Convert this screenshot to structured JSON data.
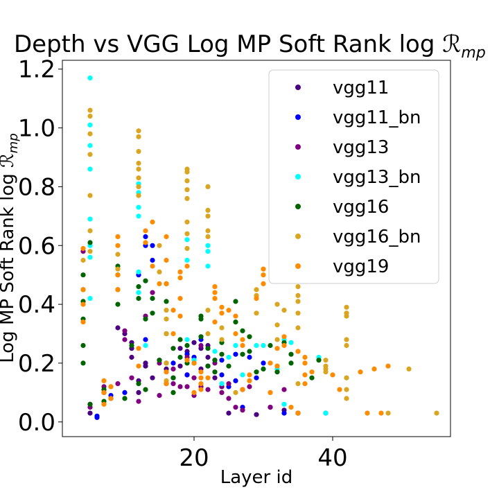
{
  "chart_data": {
    "type": "scatter",
    "title": "Depth vs VGG Log MP Soft Rank log ℛmp",
    "title_text": "Depth vs VGG Log MP Soft Rank log ",
    "title_math": "ℛ",
    "title_sub": "mp",
    "xlabel": "Layer id",
    "ylabel": "Log MP Soft Rank log ℛmp",
    "ylabel_text": "Log MP Soft Rank log ",
    "ylabel_math": "ℛ",
    "ylabel_sub": "mp",
    "xlim": [
      1,
      57
    ],
    "ylim": [
      -0.05,
      1.23
    ],
    "xticks": [
      20,
      40
    ],
    "xtick_labels": [
      "20",
      "40"
    ],
    "yticks": [
      0.0,
      0.2,
      0.4,
      0.6,
      0.8,
      1.0,
      1.2
    ],
    "ytick_labels": [
      "0.0",
      "0.2",
      "0.4",
      "0.6",
      "0.8",
      "1.0",
      "1.2"
    ],
    "grid": false,
    "legend_position": "top-right",
    "series": [
      {
        "name": "vgg11",
        "color": "#4b0082",
        "x": [
          5,
          5,
          7,
          8,
          9,
          10,
          11,
          11,
          11,
          12,
          12,
          13,
          13,
          14,
          15,
          16,
          16,
          17,
          18,
          18,
          19,
          19,
          20,
          20,
          21,
          21,
          22,
          22,
          23,
          24,
          25,
          27,
          29,
          31,
          33,
          35
        ],
        "y": [
          0.06,
          0.03,
          0.1,
          0.08,
          0.32,
          0.3,
          0.27,
          0.25,
          0.22,
          0.14,
          0.1,
          0.19,
          0.2,
          0.15,
          0.21,
          0.13,
          0.18,
          0.15,
          0.19,
          0.25,
          0.16,
          0.24,
          0.27,
          0.22,
          0.25,
          0.18,
          0.22,
          0.26,
          0.15,
          0.12,
          0.03,
          0.11,
          0.025,
          0.05,
          0.04,
          0.03
        ]
      },
      {
        "name": "vgg11_bn",
        "color": "#0000ff",
        "x": [
          6,
          6,
          8,
          10,
          12,
          13,
          13,
          13,
          14,
          14,
          17,
          19,
          19,
          20,
          21,
          22,
          23,
          24,
          24,
          25,
          26,
          26,
          27,
          28,
          29,
          30,
          33,
          39
        ],
        "y": [
          0.02,
          0.015,
          0.09,
          0.1,
          0.5,
          0.63,
          0.6,
          0.28,
          0.6,
          0.55,
          0.2,
          0.16,
          0.23,
          0.22,
          0.28,
          0.19,
          0.21,
          0.16,
          0.21,
          0.12,
          0.14,
          0.23,
          0.05,
          0.22,
          0.15,
          0.2,
          0.03,
          0.03
        ]
      },
      {
        "name": "vgg13",
        "color": "#800080",
        "x": [
          4,
          5,
          7,
          9,
          10,
          10,
          11,
          12,
          13,
          14,
          15,
          15,
          16,
          17,
          17,
          18,
          19,
          19,
          20,
          20,
          21,
          21,
          22,
          23,
          24,
          24,
          25,
          25,
          26,
          27,
          28,
          31,
          33
        ],
        "y": [
          0.58,
          0.05,
          0.12,
          0.13,
          0.28,
          0.31,
          0.15,
          0.07,
          0.36,
          0.44,
          0.2,
          0.09,
          0.2,
          0.13,
          0.18,
          0.12,
          0.12,
          0.22,
          0.15,
          0.09,
          0.26,
          0.12,
          0.11,
          0.2,
          0.1,
          0.12,
          0.08,
          0.13,
          0.05,
          0.04,
          0.12,
          0.05,
          0.11
        ]
      },
      {
        "name": "vgg13_bn",
        "color": "#00ffff",
        "x": [
          4,
          5,
          5,
          5,
          5,
          5,
          5,
          5,
          5,
          12,
          12,
          12,
          12,
          12,
          12,
          13,
          16,
          19,
          19,
          19,
          20,
          22,
          22,
          22,
          23,
          24,
          25,
          26,
          27,
          29,
          30,
          32,
          33,
          33,
          34,
          38,
          39,
          42,
          45
        ],
        "y": [
          0.45,
          1.17,
          1.01,
          0.94,
          0.86,
          0.69,
          0.6,
          0.56,
          0.42,
          0.81,
          0.78,
          0.73,
          0.7,
          0.51,
          0.44,
          0.26,
          0.2,
          0.62,
          0.55,
          0.28,
          0.21,
          0.6,
          0.58,
          0.53,
          0.24,
          0.13,
          0.22,
          0.26,
          0.16,
          0.26,
          0.26,
          0.18,
          0.28,
          0.06,
          0.27,
          0.22,
          0.03,
          0.15,
          0.03
        ]
      },
      {
        "name": "vgg16",
        "color": "#006400",
        "x": [
          4,
          4,
          4,
          4,
          4,
          4,
          5,
          5,
          7,
          7,
          9,
          9,
          9,
          9,
          10,
          11,
          12,
          12,
          12,
          13,
          13,
          13,
          14,
          14,
          15,
          16,
          16,
          16,
          17,
          17,
          17,
          18,
          18,
          19,
          19,
          20,
          21,
          21,
          21,
          22,
          22,
          23,
          23,
          24,
          24,
          25,
          26,
          26,
          27,
          27,
          28,
          28,
          29,
          30,
          31,
          32,
          33,
          34,
          34,
          35,
          37,
          38
        ],
        "y": [
          0.5,
          0.45,
          0.41,
          0.35,
          0.26,
          0.2,
          0.61,
          0.06,
          0.11,
          0.07,
          0.53,
          0.5,
          0.45,
          0.4,
          0.08,
          0.26,
          0.46,
          0.42,
          0.13,
          0.48,
          0.35,
          0.11,
          0.42,
          0.37,
          0.21,
          0.47,
          0.41,
          0.3,
          0.25,
          0.15,
          0.1,
          0.22,
          0.28,
          0.26,
          0.2,
          0.2,
          0.36,
          0.35,
          0.29,
          0.19,
          0.25,
          0.21,
          0.17,
          0.27,
          0.23,
          0.19,
          0.41,
          0.34,
          0.31,
          0.23,
          0.29,
          0.24,
          0.17,
          0.18,
          0.26,
          0.17,
          0.27,
          0.2,
          0.23,
          0.03,
          0.15,
          0.21
        ]
      },
      {
        "name": "vgg16_bn",
        "color": "#daa520",
        "x": [
          4,
          5,
          5,
          5,
          5,
          5,
          5,
          5,
          8,
          9,
          9,
          12,
          12,
          12,
          12,
          12,
          12,
          12,
          12,
          15,
          15,
          16,
          16,
          16,
          16,
          16,
          19,
          19,
          19,
          19,
          19,
          19,
          19,
          19,
          22,
          22,
          22,
          22,
          22,
          22,
          22,
          24,
          24,
          26,
          29,
          29,
          29,
          32,
          32,
          32,
          32,
          33,
          35,
          35,
          35,
          35,
          35,
          35,
          35,
          39,
          39,
          39,
          39,
          42,
          42,
          42,
          42,
          42,
          42,
          42,
          42,
          48,
          51,
          55
        ],
        "y": [
          0.55,
          1.06,
          1.04,
          0.98,
          0.91,
          0.77,
          0.65,
          0.58,
          0.12,
          0.57,
          0.52,
          0.99,
          0.97,
          0.92,
          0.88,
          0.86,
          0.83,
          0.8,
          0.77,
          0.6,
          0.51,
          0.38,
          0.35,
          0.3,
          0.2,
          0.14,
          0.86,
          0.85,
          0.82,
          0.79,
          0.76,
          0.68,
          0.64,
          0.59,
          0.8,
          0.72,
          0.7,
          0.65,
          0.63,
          0.38,
          0.3,
          0.32,
          0.28,
          0.1,
          0.45,
          0.43,
          0.37,
          0.4,
          0.33,
          0.28,
          0.19,
          0.38,
          0.46,
          0.43,
          0.41,
          0.37,
          0.32,
          0.24,
          0.13,
          0.21,
          0.19,
          0.18,
          0.17,
          0.39,
          0.37,
          0.36,
          0.28,
          0.26,
          0.15,
          0.11,
          0.08,
          0.03,
          0.18,
          0.03
        ]
      },
      {
        "name": "vgg19",
        "color": "#ff8c00",
        "x": [
          4,
          4,
          4,
          4,
          7,
          7,
          7,
          8,
          8,
          9,
          9,
          9,
          9,
          12,
          12,
          13,
          13,
          14,
          14,
          15,
          16,
          16,
          16,
          16,
          16,
          17,
          17,
          18,
          18,
          18,
          18,
          19,
          19,
          20,
          20,
          21,
          21,
          21,
          21,
          22,
          23,
          23,
          23,
          23,
          24,
          24,
          25,
          26,
          26,
          27,
          27,
          27,
          28,
          28,
          29,
          30,
          30,
          30,
          31,
          31,
          32,
          32,
          33,
          33,
          34,
          35,
          35,
          36,
          36,
          36,
          36,
          37,
          40,
          41,
          44,
          45,
          46,
          47,
          48
        ],
        "y": [
          0.59,
          0.45,
          0.4,
          0.34,
          0.14,
          0.1,
          0.06,
          0.12,
          0.08,
          0.63,
          0.6,
          0.5,
          0.45,
          0.25,
          0.19,
          0.65,
          0.61,
          0.68,
          0.53,
          0.47,
          0.63,
          0.55,
          0.47,
          0.17,
          0.13,
          0.38,
          0.3,
          0.51,
          0.49,
          0.42,
          0.36,
          0.53,
          0.21,
          0.2,
          0.1,
          0.17,
          0.15,
          0.13,
          0.11,
          0.15,
          0.46,
          0.44,
          0.42,
          0.34,
          0.39,
          0.37,
          0.38,
          0.36,
          0.3,
          0.28,
          0.26,
          0.11,
          0.16,
          0.14,
          0.42,
          0.52,
          0.5,
          0.47,
          0.2,
          0.1,
          0.25,
          0.19,
          0.29,
          0.26,
          0.05,
          0.03,
          0.24,
          0.22,
          0.2,
          0.16,
          0.13,
          0.17,
          0.16,
          0.11,
          0.17,
          0.03,
          0.18,
          0.03,
          0.19
        ]
      }
    ]
  }
}
